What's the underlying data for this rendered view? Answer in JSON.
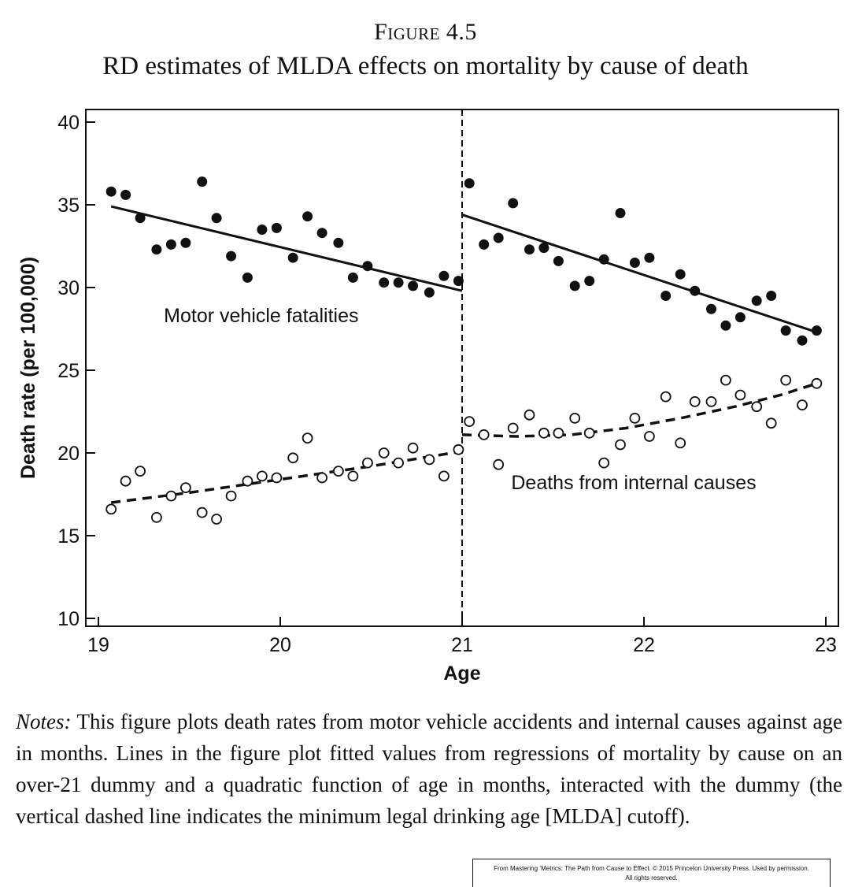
{
  "figure": {
    "label": "Figure 4.5",
    "title": "RD estimates of MLDA effects on mortality by cause of death"
  },
  "chart_data": {
    "type": "scatter",
    "title": "RD estimates of MLDA effects on mortality by cause of death",
    "xlabel": "Age",
    "ylabel": "Death rate (per 100,000)",
    "xlim": [
      19,
      23
    ],
    "ylim": [
      10,
      40
    ],
    "xticks": [
      19,
      20,
      21,
      22,
      23
    ],
    "yticks": [
      10,
      15,
      20,
      25,
      30,
      35,
      40
    ],
    "grid": false,
    "cutoff": 21,
    "annotations": [
      "Motor vehicle fatalities",
      "Deaths from internal causes"
    ],
    "series": [
      {
        "name": "Motor vehicle fatalities",
        "marker": "filled-circle",
        "points": [
          [
            19.07,
            35.8
          ],
          [
            19.15,
            35.6
          ],
          [
            19.23,
            34.2
          ],
          [
            19.32,
            32.3
          ],
          [
            19.4,
            32.6
          ],
          [
            19.48,
            32.7
          ],
          [
            19.57,
            36.4
          ],
          [
            19.65,
            34.2
          ],
          [
            19.73,
            31.9
          ],
          [
            19.82,
            30.6
          ],
          [
            19.9,
            33.5
          ],
          [
            19.98,
            33.6
          ],
          [
            20.07,
            31.8
          ],
          [
            20.15,
            34.3
          ],
          [
            20.23,
            33.3
          ],
          [
            20.32,
            32.7
          ],
          [
            20.4,
            30.6
          ],
          [
            20.48,
            31.3
          ],
          [
            20.57,
            30.3
          ],
          [
            20.65,
            30.3
          ],
          [
            20.73,
            30.1
          ],
          [
            20.82,
            29.7
          ],
          [
            20.9,
            30.7
          ],
          [
            20.98,
            30.4
          ],
          [
            21.04,
            36.3
          ],
          [
            21.12,
            32.6
          ],
          [
            21.2,
            33.0
          ],
          [
            21.28,
            35.1
          ],
          [
            21.37,
            32.3
          ],
          [
            21.45,
            32.4
          ],
          [
            21.53,
            31.6
          ],
          [
            21.62,
            30.1
          ],
          [
            21.7,
            30.4
          ],
          [
            21.78,
            31.7
          ],
          [
            21.87,
            34.5
          ],
          [
            21.95,
            31.5
          ],
          [
            22.03,
            31.8
          ],
          [
            22.12,
            29.5
          ],
          [
            22.2,
            30.8
          ],
          [
            22.28,
            29.8
          ],
          [
            22.37,
            28.7
          ],
          [
            22.45,
            27.7
          ],
          [
            22.53,
            28.2
          ],
          [
            22.62,
            29.2
          ],
          [
            22.7,
            29.5
          ],
          [
            22.78,
            27.4
          ],
          [
            22.87,
            26.8
          ],
          [
            22.95,
            27.4
          ]
        ],
        "fit": {
          "style": "solid",
          "left": [
            [
              19.07,
              34.9
            ],
            [
              21.0,
              29.8
            ]
          ],
          "right": [
            [
              21.0,
              34.4
            ],
            [
              22.95,
              27.3
            ]
          ]
        }
      },
      {
        "name": "Deaths from internal causes",
        "marker": "hollow-circle",
        "points": [
          [
            19.07,
            16.6
          ],
          [
            19.15,
            18.3
          ],
          [
            19.23,
            18.9
          ],
          [
            19.32,
            16.1
          ],
          [
            19.4,
            17.4
          ],
          [
            19.48,
            17.9
          ],
          [
            19.57,
            16.4
          ],
          [
            19.65,
            16.0
          ],
          [
            19.73,
            17.4
          ],
          [
            19.82,
            18.3
          ],
          [
            19.9,
            18.6
          ],
          [
            19.98,
            18.5
          ],
          [
            20.07,
            19.7
          ],
          [
            20.15,
            20.9
          ],
          [
            20.23,
            18.5
          ],
          [
            20.32,
            18.9
          ],
          [
            20.4,
            18.6
          ],
          [
            20.48,
            19.4
          ],
          [
            20.57,
            20.0
          ],
          [
            20.65,
            19.4
          ],
          [
            20.73,
            20.3
          ],
          [
            20.82,
            19.6
          ],
          [
            20.9,
            18.6
          ],
          [
            20.98,
            20.2
          ],
          [
            21.04,
            21.9
          ],
          [
            21.12,
            21.1
          ],
          [
            21.2,
            19.3
          ],
          [
            21.28,
            21.5
          ],
          [
            21.37,
            22.3
          ],
          [
            21.45,
            21.2
          ],
          [
            21.53,
            21.2
          ],
          [
            21.62,
            22.1
          ],
          [
            21.7,
            21.2
          ],
          [
            21.78,
            19.4
          ],
          [
            21.87,
            20.5
          ],
          [
            21.95,
            22.1
          ],
          [
            22.03,
            21.0
          ],
          [
            22.12,
            23.4
          ],
          [
            22.2,
            20.6
          ],
          [
            22.28,
            23.1
          ],
          [
            22.37,
            23.1
          ],
          [
            22.45,
            24.4
          ],
          [
            22.53,
            23.5
          ],
          [
            22.62,
            22.8
          ],
          [
            22.7,
            21.8
          ],
          [
            22.78,
            24.4
          ],
          [
            22.87,
            22.9
          ],
          [
            22.95,
            24.2
          ]
        ],
        "fit": {
          "style": "dashed",
          "left": [
            [
              19.07,
              17.0
            ],
            [
              19.5,
              17.6
            ],
            [
              20.0,
              18.4
            ],
            [
              20.5,
              19.2
            ],
            [
              21.0,
              20.1
            ]
          ],
          "right": [
            [
              21.0,
              21.1
            ],
            [
              21.3,
              21.0
            ],
            [
              21.6,
              21.1
            ],
            [
              21.9,
              21.5
            ],
            [
              22.2,
              22.1
            ],
            [
              22.5,
              22.8
            ],
            [
              22.75,
              23.5
            ],
            [
              22.95,
              24.2
            ]
          ]
        }
      }
    ]
  },
  "notes": {
    "lead": "Notes:",
    "text": "This figure plots death rates from motor vehicle accidents and internal causes against age in months. Lines in the figure plot fitted values from regressions of mortality by cause on an over-21 dummy and a quadratic function of age in months, interacted with the dummy (the vertical dashed line indicates the minimum legal drinking age [MLDA] cutoff)."
  },
  "credit": {
    "line1": "From Mastering ’Metrics: The Path from Cause to Effect. © 2015 Princeton University Press. Used by permission.",
    "line2": "All rights reserved."
  }
}
